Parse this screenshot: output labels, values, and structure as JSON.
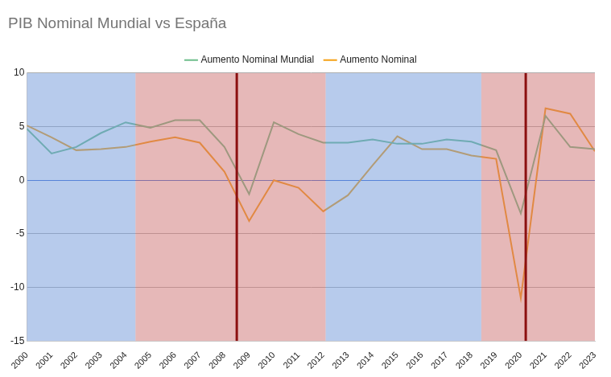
{
  "chart_data": {
    "type": "line",
    "title": "PIB Nominal Mundial vs España",
    "x": [
      2000,
      2001,
      2002,
      2003,
      2004,
      2005,
      2006,
      2007,
      2008,
      2009,
      2010,
      2011,
      2012,
      2013,
      2014,
      2015,
      2016,
      2017,
      2018,
      2019,
      2020,
      2021,
      2022,
      2023
    ],
    "series": [
      {
        "name": "Aumento Nominal Mundial",
        "color": "#6ebe8c",
        "values": [
          4.8,
          2.5,
          3.1,
          4.4,
          5.4,
          4.9,
          5.6,
          5.6,
          3.1,
          -1.3,
          5.4,
          4.3,
          3.5,
          3.5,
          3.8,
          3.4,
          3.4,
          3.8,
          3.6,
          2.8,
          -3.1,
          6.0,
          3.1,
          2.9
        ]
      },
      {
        "name": "Aumento Nominal",
        "color": "#f5a014",
        "values": [
          5.1,
          4.0,
          2.8,
          2.9,
          3.1,
          3.6,
          4.0,
          3.5,
          0.8,
          -3.8,
          0.0,
          -0.7,
          -2.9,
          -1.4,
          1.4,
          4.1,
          2.9,
          2.9,
          2.3,
          2.0,
          -11.0,
          6.7,
          6.2,
          2.7
        ]
      }
    ],
    "xlim": [
      2000,
      2023
    ],
    "xticks": [
      2000,
      2001,
      2002,
      2003,
      2004,
      2005,
      2006,
      2007,
      2008,
      2009,
      2010,
      2011,
      2012,
      2013,
      2014,
      2015,
      2016,
      2017,
      2018,
      2019,
      2020,
      2021,
      2022,
      2023
    ],
    "ylim": [
      -15,
      10
    ],
    "yticks": [
      -15,
      -10,
      -5,
      0,
      5,
      10
    ],
    "grid": true,
    "legend": "top",
    "shaded_regions": [
      {
        "from": 2000,
        "to": 2004.4,
        "color": "#6f97d9"
      },
      {
        "from": 2004.4,
        "to": 2012.1,
        "color": "#cd7171"
      },
      {
        "from": 2012.1,
        "to": 2018.4,
        "color": "#6f97d9"
      },
      {
        "from": 2018.4,
        "to": 2023,
        "color": "#cd7171"
      }
    ],
    "vertical_lines": [
      {
        "x": 2008.5,
        "color": "#8b1010"
      },
      {
        "x": 2020.2,
        "color": "#8b1010"
      }
    ]
  }
}
